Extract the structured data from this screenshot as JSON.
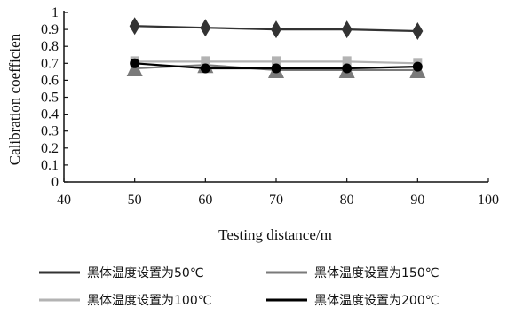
{
  "chart_data": {
    "type": "line",
    "title": "",
    "xlabel": "Testing distance/m",
    "ylabel": "Calibration coefficien",
    "xlim": [
      40,
      100
    ],
    "ylim": [
      0,
      1
    ],
    "xticks": [
      40,
      50,
      60,
      70,
      80,
      90,
      100
    ],
    "yticks": [
      0,
      0.1,
      0.2,
      0.3,
      0.4,
      0.5,
      0.6,
      0.7,
      0.8,
      0.9,
      1
    ],
    "ytick_labels": [
      "0",
      "0.1",
      "0.2",
      "0.3",
      "0.4",
      "0.5",
      "0.6",
      "0.7",
      "0.8",
      "0.9",
      "1"
    ],
    "grid": false,
    "legend_position": "bottom",
    "x": [
      50,
      60,
      70,
      80,
      90
    ],
    "series": [
      {
        "name": "黑体温度设置为50℃",
        "values": [
          0.92,
          0.91,
          0.9,
          0.9,
          0.89
        ],
        "color": "#333333",
        "marker": "diamond"
      },
      {
        "name": "黑体温度设置为150℃",
        "values": [
          0.67,
          0.69,
          0.66,
          0.66,
          0.66
        ],
        "color": "#7a7a7a",
        "marker": "triangle"
      },
      {
        "name": "黑体温度设置为100℃",
        "values": [
          0.71,
          0.71,
          0.71,
          0.71,
          0.7
        ],
        "color": "#b3b3b3",
        "marker": "square"
      },
      {
        "name": "黑体温度设置为200℃",
        "values": [
          0.7,
          0.67,
          0.67,
          0.67,
          0.68
        ],
        "color": "#000000",
        "marker": "circle"
      }
    ]
  }
}
